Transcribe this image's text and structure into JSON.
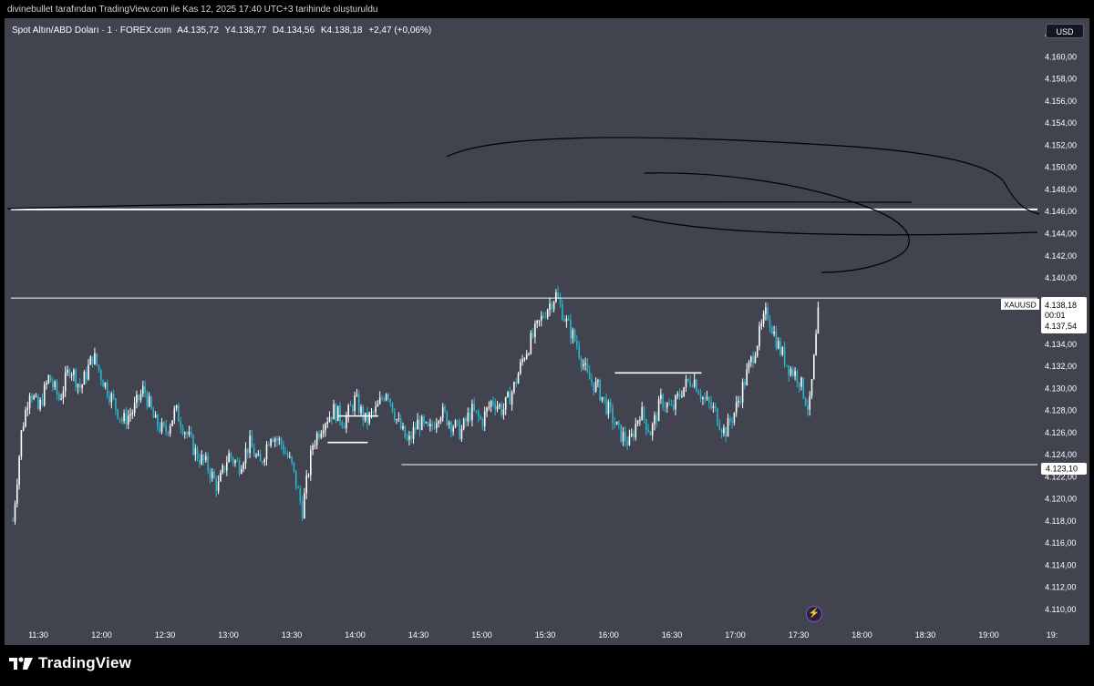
{
  "attribution": "divinebullet tarafından TradingView.com ile Kas 12, 2025 17:40 UTC+3 tarihinde oluşturuldu",
  "symbol_info": {
    "name": "Spot Altın/ABD Doları · 1 · FOREX.com",
    "open": "A4.135,72",
    "high": "Y4.138,77",
    "low": "D4.134,56",
    "close": "K4.138,18",
    "change": "+2,47 (+0,06%)"
  },
  "currency_button": "USD",
  "price_labels": {
    "symbol_tag": "XAUUSD",
    "last_price": "4.138,18",
    "countdown": "00:01",
    "bid_price": "4.137,54",
    "support_price": "4.123,10"
  },
  "brand": "TradingView",
  "colors": {
    "background": "#41434f",
    "candle_up": "#ffffff",
    "candle_down": "#29b6cf",
    "line": "#ffffff",
    "drawing": "#000000"
  },
  "icons": [
    "tradingview-logo-icon",
    "lightning-icon"
  ],
  "chart_data": {
    "type": "candlestick",
    "title": "Spot Altın/ABD Doları · 1 · FOREX.com",
    "x_ticks": [
      "11:30",
      "12:00",
      "12:30",
      "13:00",
      "13:30",
      "14:00",
      "14:30",
      "15:00",
      "15:30",
      "16:00",
      "16:30",
      "17:00",
      "17:30",
      "18:00",
      "18:30",
      "19:00",
      "19:"
    ],
    "y_ticks": [
      "4.110,00",
      "4.112,00",
      "4.114,00",
      "4.116,00",
      "4.118,00",
      "4.120,00",
      "4.122,00",
      "4.124,00",
      "4.126,00",
      "4.128,00",
      "4.130,00",
      "4.132,00",
      "4.134,00",
      "4.136,00",
      "4.138,00",
      "4.140,00",
      "4.142,00",
      "4.144,00",
      "4.146,00",
      "4.148,00",
      "4.150,00",
      "4.152,00",
      "4.154,00",
      "4.156,00",
      "4.158,00",
      "4.160,00",
      "4.162,00"
    ],
    "ylim": [
      4109,
      4163.5
    ],
    "price_path": [
      [
        "11:18",
        4118
      ],
      [
        "11:22",
        4126
      ],
      [
        "11:26",
        4130
      ],
      [
        "11:30",
        4128
      ],
      [
        "11:35",
        4131
      ],
      [
        "11:40",
        4129
      ],
      [
        "11:45",
        4132
      ],
      [
        "11:50",
        4130
      ],
      [
        "11:56",
        4133
      ],
      [
        "12:00",
        4131
      ],
      [
        "12:05",
        4129
      ],
      [
        "12:10",
        4127
      ],
      [
        "12:15",
        4128
      ],
      [
        "12:20",
        4130
      ],
      [
        "12:25",
        4127
      ],
      [
        "12:30",
        4126
      ],
      [
        "12:35",
        4128
      ],
      [
        "12:40",
        4126
      ],
      [
        "12:45",
        4124
      ],
      [
        "12:50",
        4123
      ],
      [
        "12:55",
        4121
      ],
      [
        "13:00",
        4124
      ],
      [
        "13:05",
        4123
      ],
      [
        "13:10",
        4125
      ],
      [
        "13:15",
        4123
      ],
      [
        "13:20",
        4126
      ],
      [
        "13:25",
        4125
      ],
      [
        "13:30",
        4123
      ],
      [
        "13:35",
        4119
      ],
      [
        "13:40",
        4125
      ],
      [
        "13:45",
        4127
      ],
      [
        "13:50",
        4128
      ],
      [
        "13:55",
        4127
      ],
      [
        "14:00",
        4129
      ],
      [
        "14:05",
        4127
      ],
      [
        "14:10",
        4128
      ],
      [
        "14:15",
        4130
      ],
      [
        "14:20",
        4127
      ],
      [
        "14:25",
        4125
      ],
      [
        "14:30",
        4127
      ],
      [
        "14:35",
        4126
      ],
      [
        "14:40",
        4128
      ],
      [
        "14:45",
        4127
      ],
      [
        "14:50",
        4126
      ],
      [
        "14:55",
        4128
      ],
      [
        "15:00",
        4127
      ],
      [
        "15:05",
        4129
      ],
      [
        "15:10",
        4128
      ],
      [
        "15:15",
        4130
      ],
      [
        "15:20",
        4133
      ],
      [
        "15:25",
        4135
      ],
      [
        "15:30",
        4137
      ],
      [
        "15:35",
        4138.5
      ],
      [
        "15:40",
        4136
      ],
      [
        "15:45",
        4134
      ],
      [
        "15:50",
        4131
      ],
      [
        "15:55",
        4130
      ],
      [
        "16:00",
        4128
      ],
      [
        "16:05",
        4126
      ],
      [
        "16:10",
        4125
      ],
      [
        "16:15",
        4128
      ],
      [
        "16:20",
        4126
      ],
      [
        "16:25",
        4129
      ],
      [
        "16:30",
        4128
      ],
      [
        "16:35",
        4130
      ],
      [
        "16:40",
        4131
      ],
      [
        "16:45",
        4129
      ],
      [
        "16:50",
        4128
      ],
      [
        "16:55",
        4126
      ],
      [
        "17:00",
        4128
      ],
      [
        "17:05",
        4131
      ],
      [
        "17:10",
        4134
      ],
      [
        "17:15",
        4137
      ],
      [
        "17:20",
        4134
      ],
      [
        "17:25",
        4132
      ],
      [
        "17:30",
        4131
      ],
      [
        "17:35",
        4128
      ],
      [
        "17:38",
        4134
      ],
      [
        "17:40",
        4138.18
      ]
    ],
    "horizontal_lines": [
      {
        "price": 4146.2,
        "from": "11:17"
      },
      {
        "price": 4138.18,
        "from": "11:17"
      },
      {
        "price": 4123.1,
        "from": "14:22"
      }
    ],
    "range_lines": [
      {
        "price": 4127.5,
        "from": "13:52",
        "to": "14:11"
      },
      {
        "price": 4125.1,
        "from": "13:47",
        "to": "14:06"
      },
      {
        "price": 4131.4,
        "from": "16:03",
        "to": "16:44"
      }
    ],
    "drawings": "freehand curves near 4.140–4.154"
  }
}
